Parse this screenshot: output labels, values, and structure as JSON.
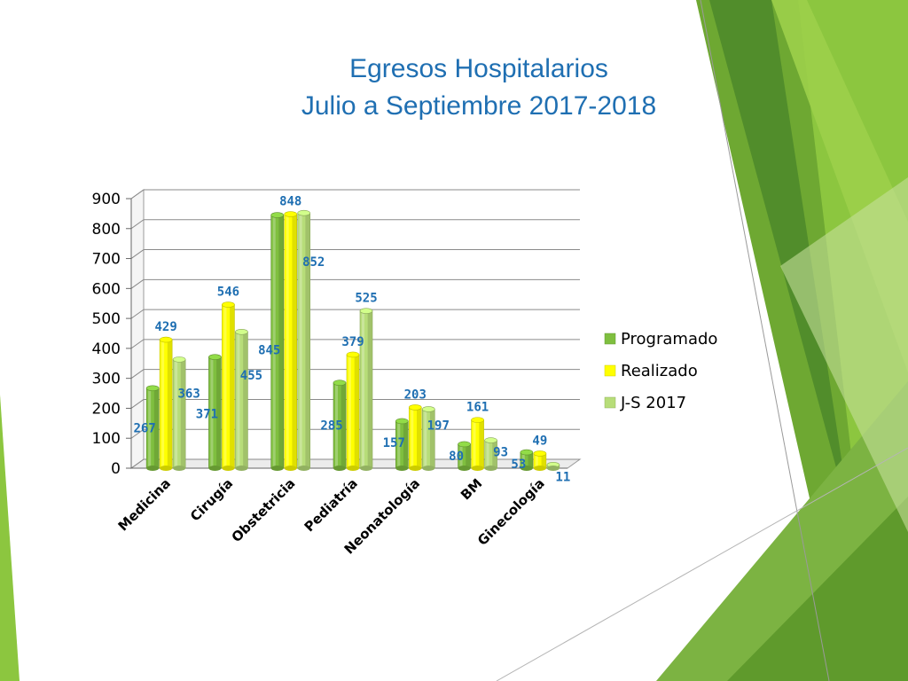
{
  "slide": {
    "title_line1": "Egresos Hospitalarios",
    "title_line2": "Julio a Septiembre 2017-2018"
  },
  "colors": {
    "accent_dark": "#4f8f1e",
    "accent_mid": "#7cb342",
    "accent_light": "#b9d985",
    "label_blue": "#1f6fb2"
  },
  "chart_data": {
    "type": "bar",
    "categories": [
      "Medicina",
      "Cirugía",
      "Obstetricia",
      "Pediatría",
      "Neonatología",
      "BM",
      "Ginecología"
    ],
    "series": [
      {
        "name": "Programado",
        "values": [
          267,
          371,
          845,
          285,
          157,
          80,
          53
        ],
        "color": "#7fbf3f"
      },
      {
        "name": "Realizado",
        "values": [
          429,
          546,
          848,
          379,
          203,
          161,
          49
        ],
        "color": "#ffff00"
      },
      {
        "name": "J-S 2017",
        "values": [
          363,
          455,
          852,
          525,
          197,
          93,
          11
        ],
        "color": "#b7dd79"
      }
    ],
    "ylim": [
      0,
      900
    ],
    "yticks": [
      0,
      100,
      200,
      300,
      400,
      500,
      600,
      700,
      800,
      900
    ],
    "grid": true,
    "legend": "right"
  }
}
